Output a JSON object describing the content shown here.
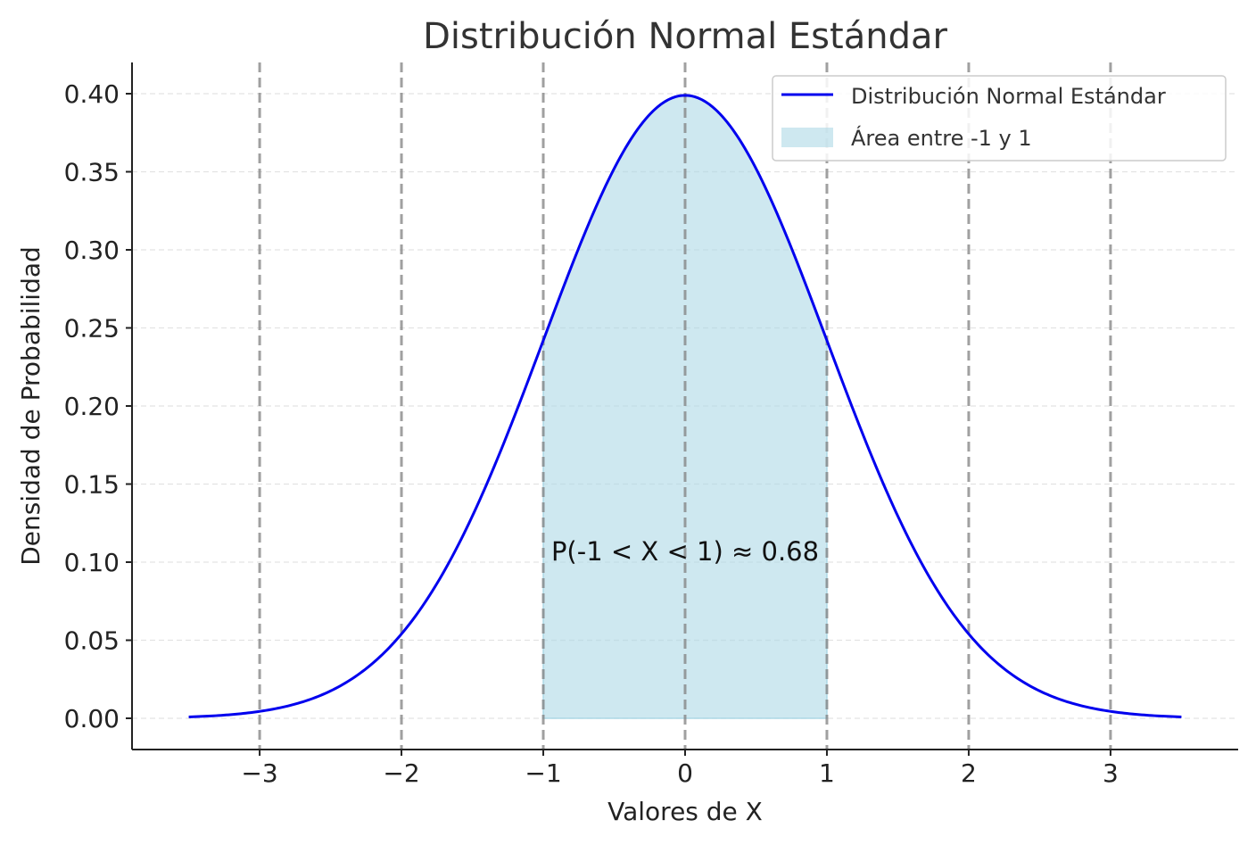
{
  "chart_data": {
    "type": "area",
    "title": "Distribución Normal Estándar",
    "xlabel": "Valores de X",
    "ylabel": "Densidad de Probabilidad",
    "xlim": [
      -3.9,
      3.9
    ],
    "ylim": [
      -0.02,
      0.42
    ],
    "x_ticks": [
      -3,
      -2,
      -1,
      0,
      1,
      2,
      3
    ],
    "x_tick_labels": [
      "−3",
      "−2",
      "−1",
      "0",
      "1",
      "2",
      "3"
    ],
    "y_ticks": [
      0.0,
      0.05,
      0.1,
      0.15,
      0.2,
      0.25,
      0.3,
      0.35,
      0.4
    ],
    "y_tick_labels": [
      "0.00",
      "0.05",
      "0.10",
      "0.15",
      "0.20",
      "0.25",
      "0.30",
      "0.35",
      "0.40"
    ],
    "grid": "horizontal dashed",
    "vertical_dashed_lines": [
      -3,
      -2,
      -1,
      0,
      1,
      2,
      3
    ],
    "legend_position": "top-right",
    "series": [
      {
        "name": "Distribución Normal Estándar",
        "kind": "line",
        "color": "#0000ee",
        "x_range": [
          -3.5,
          3.5
        ],
        "x": [
          -3.5,
          -3.0,
          -2.5,
          -2.0,
          -1.5,
          -1.0,
          -0.5,
          0.0,
          0.5,
          1.0,
          1.5,
          2.0,
          2.5,
          3.0,
          3.5
        ],
        "y": [
          0.0009,
          0.0044,
          0.0175,
          0.054,
          0.1295,
          0.242,
          0.3521,
          0.3989,
          0.3521,
          0.242,
          0.1295,
          0.054,
          0.0175,
          0.0044,
          0.0009
        ]
      },
      {
        "name": "Área entre -1 y 1",
        "kind": "area",
        "color": "#add8e6",
        "x_range": [
          -1,
          1
        ]
      }
    ],
    "annotation": {
      "text": "P(-1 < X < 1) ≈ 0.68",
      "x": 0,
      "y": 0.1
    }
  }
}
